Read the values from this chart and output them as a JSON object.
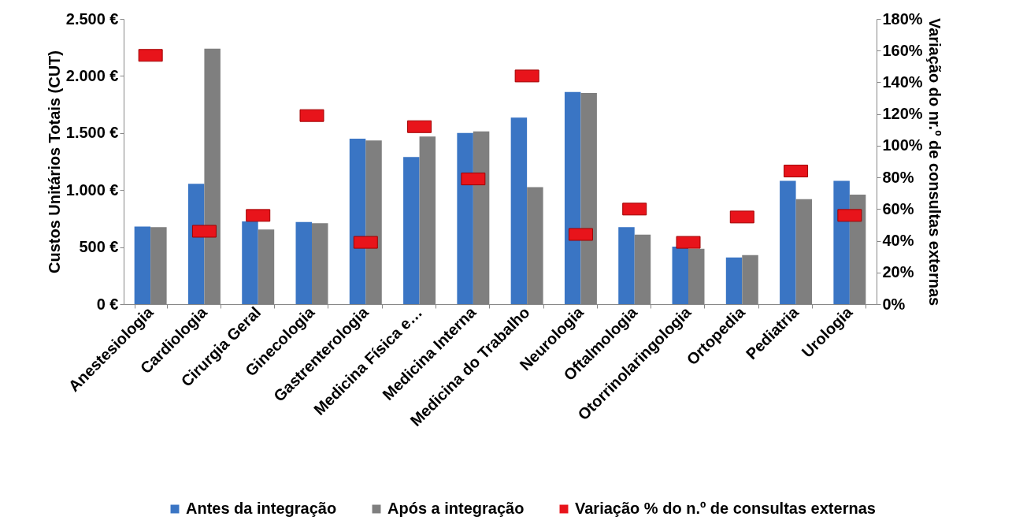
{
  "chart_data": {
    "type": "bar",
    "xlabel": null,
    "ylabel": "Custos Unitários Totais (CUT)",
    "y2label": "Variação do nr.º de consultas externas",
    "categories": [
      "Anestesiologia",
      "Cardiologia",
      "Cirurgia Geral",
      "Ginecologia",
      "Gastrenterologia",
      "Medicina Física e…",
      "Medicina Interna",
      "Medicina do Trabalho",
      "Neurologia",
      "Oftalmologia",
      "Otorrinolaringologia",
      "Ortopedia",
      "Pediatria",
      "Urologia"
    ],
    "series": [
      {
        "name": "Antes da integração",
        "color": "#3a75c4",
        "values": [
          680,
          1055,
          725,
          720,
          1450,
          1290,
          1500,
          1635,
          1860,
          675,
          505,
          410,
          1080,
          1080
        ]
      },
      {
        "name": "Após a integração",
        "color": "#7f7f7f",
        "values": [
          675,
          2240,
          655,
          710,
          1435,
          1470,
          1515,
          1025,
          1850,
          610,
          485,
          430,
          920,
          960
        ]
      },
      {
        "name": "Variação % do n.º de consultas externas",
        "type": "scatter",
        "axis": "y2",
        "color": "#e8141b",
        "values": [
          157,
          46,
          56,
          119,
          39,
          112,
          79,
          144,
          44,
          60,
          39,
          55,
          84,
          56
        ]
      }
    ],
    "ylim": [
      0,
      2500
    ],
    "yticks": [
      {
        "value": 0,
        "label": "0 €"
      },
      {
        "value": 500,
        "label": "500 €"
      },
      {
        "value": 1000,
        "label": "1.000 €"
      },
      {
        "value": 1500,
        "label": "1.500 €"
      },
      {
        "value": 2000,
        "label": "2.000 €"
      },
      {
        "value": 2500,
        "label": "2.500 €"
      }
    ],
    "y2lim": [
      0,
      180
    ],
    "y2ticks": [
      {
        "value": 0,
        "label": "0%"
      },
      {
        "value": 20,
        "label": "20%"
      },
      {
        "value": 40,
        "label": "40%"
      },
      {
        "value": 60,
        "label": "60%"
      },
      {
        "value": 80,
        "label": "80%"
      },
      {
        "value": 100,
        "label": "100%"
      },
      {
        "value": 120,
        "label": "120%"
      },
      {
        "value": 140,
        "label": "140%"
      },
      {
        "value": 160,
        "label": "160%"
      },
      {
        "value": 180,
        "label": "180%"
      }
    ],
    "grid": false,
    "legend": "bottom"
  }
}
